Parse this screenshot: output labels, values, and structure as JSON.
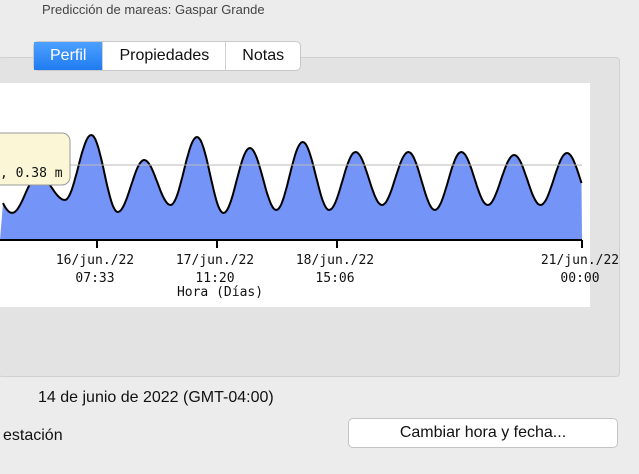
{
  "window": {
    "title": "Predicción de mareas: Gaspar Grande"
  },
  "tabs": [
    "Perfil",
    "Propiedades",
    "Notas"
  ],
  "selected_tab": 0,
  "chart_data": {
    "type": "area",
    "color": "#7594f7",
    "values": [
      -0.1,
      0.28,
      0.03,
      0.68,
      -0.09,
      0.43,
      -0.02,
      0.66,
      -0.1,
      0.55,
      -0.07,
      0.61,
      -0.07,
      0.51,
      -0.02,
      0.51,
      -0.07,
      0.51,
      -0.02,
      0.48,
      -0.02,
      0.5
    ],
    "ylim": [
      -0.37,
      1.2
    ],
    "xlabel": "Hora (Días)",
    "xticks": [
      [
        "16/jun./22",
        "07:33"
      ],
      [
        "17/jun./22",
        "11:20"
      ],
      [
        "18/jun./22",
        "15:06"
      ],
      [
        "21/jun./22",
        "00:00"
      ]
    ],
    "tooltip": ", 0.38 m"
  },
  "date_text": "14 de junio de 2022 (GMT-04:00)",
  "station_text": "estación",
  "button": "Cambiar hora y fecha..."
}
